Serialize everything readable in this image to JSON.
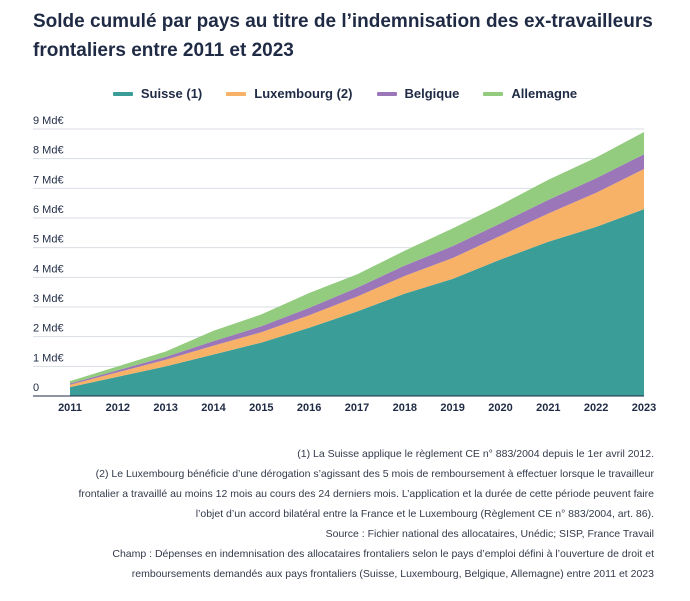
{
  "title": "Solde cumulé par pays au titre de l’indemnisation des ex-travailleurs frontaliers entre 2011 et 2023",
  "colors": {
    "suisse": "#3a9d98",
    "luxembourg": "#f7b267",
    "belgique": "#9b76b8",
    "allemagne": "#93cc7e",
    "grid": "#d9dde3",
    "axis": "#1f2a44"
  },
  "chart_data": {
    "type": "area",
    "stacked": true,
    "x": [
      "2011",
      "2012",
      "2013",
      "2014",
      "2015",
      "2016",
      "2017",
      "2018",
      "2019",
      "2020",
      "2021",
      "2022",
      "2023"
    ],
    "y_ticks": [
      "0",
      "1 Md€",
      "2 Md€",
      "3 Md€",
      "4 Md€",
      "5 Md€",
      "6 Md€",
      "7 Md€",
      "8 Md€",
      "9 Md€"
    ],
    "ylim": [
      0,
      9
    ],
    "grid": true,
    "legend_position": "top",
    "series": [
      {
        "name": "Suisse (1)",
        "color_key": "suisse",
        "values": [
          0.3,
          0.65,
          1.0,
          1.4,
          1.8,
          2.3,
          2.85,
          3.45,
          3.95,
          4.6,
          5.2,
          5.7,
          6.3
        ]
      },
      {
        "name": "Luxembourg (2)",
        "color_key": "luxembourg",
        "values": [
          0.08,
          0.15,
          0.22,
          0.3,
          0.35,
          0.42,
          0.5,
          0.6,
          0.7,
          0.8,
          0.95,
          1.15,
          1.35
        ]
      },
      {
        "name": "Belgique",
        "color_key": "belgique",
        "values": [
          0.04,
          0.07,
          0.1,
          0.15,
          0.2,
          0.25,
          0.3,
          0.35,
          0.4,
          0.42,
          0.46,
          0.49,
          0.5
        ]
      },
      {
        "name": "Allemagne",
        "color_key": "allemagne",
        "values": [
          0.08,
          0.13,
          0.18,
          0.35,
          0.4,
          0.5,
          0.45,
          0.5,
          0.6,
          0.62,
          0.68,
          0.7,
          0.75
        ]
      }
    ]
  },
  "notes": [
    "(1) La Suisse applique le règlement CE n° 883/2004 depuis le 1er avril 2012.",
    "(2) Le Luxembourg bénéficie d’une dérogation s’agissant des 5 mois de remboursement à effectuer lorsque le travailleur",
    "frontalier a travaillé au moins 12 mois au cours des 24 derniers mois. L’application et la durée de cette période peuvent faire",
    "l’objet d’un accord bilatéral entre la France et le Luxembourg (Règlement CE n° 883/2004, art. 86).",
    "Source : Fichier national des allocataires, Unédic;  SISP, France Travail",
    "Champ : Dépenses en indemnisation des allocataires frontaliers selon le pays d’emploi défini à l’ouverture de droit et",
    "remboursements demandés aux pays frontaliers (Suisse, Luxembourg, Belgique, Allemagne) entre 2011 et 2023"
  ]
}
